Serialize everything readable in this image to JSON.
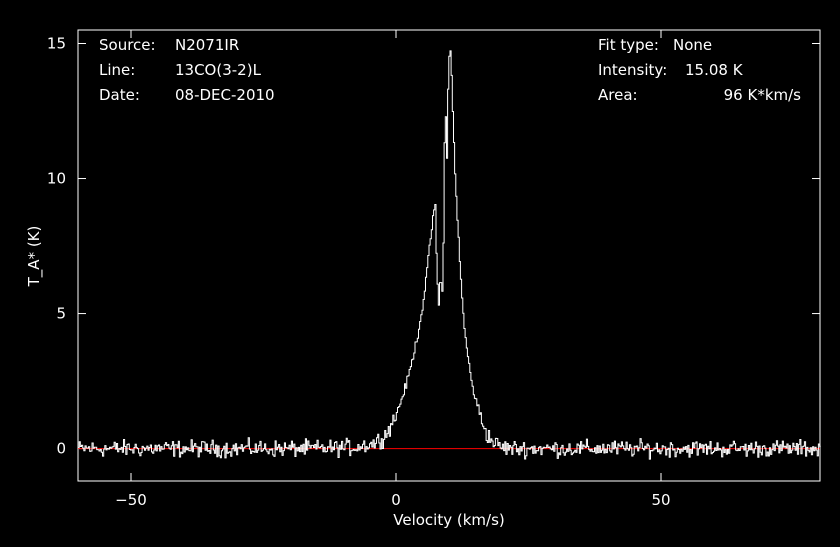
{
  "header": {
    "source_label": "Source:",
    "source_value": "N2071IR",
    "line_label": "Line:",
    "line_value": "13CO(3-2)L",
    "date_label": "Date:",
    "date_value": "08-DEC-2010",
    "fit_label": "Fit type:",
    "fit_value": "None",
    "intensity_label": "Intensity:",
    "intensity_value": "15.08 K",
    "area_label": "Area:",
    "area_value": "96 K*km/s"
  },
  "colors": {
    "background": "#000000",
    "spectrum": "#ffffff",
    "baseline": "#ff0000"
  },
  "chart_data": {
    "type": "line",
    "xlabel": "Velocity (km/s)",
    "ylabel": "T_A* (K)",
    "xlim": [
      -60,
      80
    ],
    "ylim": [
      -1.2,
      15.5
    ],
    "xticks": [
      -50,
      0,
      50
    ],
    "xtick_labels": [
      "−50",
      "0",
      "50"
    ],
    "yticks": [
      0,
      5,
      10,
      15
    ],
    "ytick_labels": [
      "0",
      "5",
      "10",
      "15"
    ],
    "grid": false,
    "series": [
      {
        "style": "spectrum",
        "x": [
          -60,
          -45,
          -35,
          -25,
          -15,
          -8,
          -4,
          -2,
          0,
          1,
          2,
          3,
          4,
          5,
          6,
          7,
          7.4,
          7.8,
          8.1,
          8.4,
          8.7,
          9.0,
          9.3,
          9.6,
          9.9,
          10.2,
          10.5,
          10.8,
          11.1,
          11.5,
          12,
          12.5,
          13,
          14,
          15,
          16,
          17,
          18,
          19,
          20,
          22,
          25,
          30,
          40,
          50,
          60,
          70,
          80
        ],
        "y": [
          0,
          0,
          0,
          0,
          0,
          0.05,
          0.2,
          0.5,
          1.2,
          1.8,
          2.4,
          3.2,
          4.1,
          5.2,
          6.8,
          8.6,
          9.1,
          6.2,
          5.3,
          6.6,
          5.4,
          7.8,
          13.3,
          10.6,
          13.8,
          15.0,
          13.9,
          12.0,
          10.6,
          8.9,
          7.1,
          5.5,
          4.3,
          2.8,
          1.8,
          1.2,
          0.6,
          0.3,
          0.15,
          0.05,
          0,
          0,
          0,
          0,
          0,
          0,
          0,
          0
        ]
      },
      {
        "style": "baseline",
        "x": [
          -60,
          80
        ],
        "y": [
          0,
          0
        ]
      }
    ]
  }
}
